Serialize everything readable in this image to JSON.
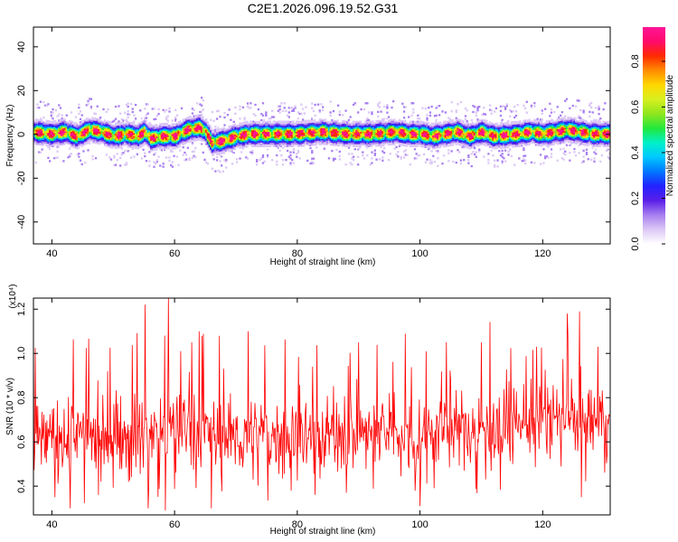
{
  "figure": {
    "title": "C2E1.2026.096.19.52.G31"
  },
  "chart_data": [
    {
      "type": "heatmap",
      "title": "C2E1.2026.096.19.52.G31",
      "xlabel": "Height of straight line (km)",
      "ylabel": "Frequency (Hz)",
      "xlim": [
        37,
        131
      ],
      "ylim": [
        -50,
        49
      ],
      "xticks": [
        40,
        60,
        80,
        100,
        120
      ],
      "yticks": [
        -40,
        -20,
        0,
        20,
        40
      ],
      "ridge": {
        "description": "frequency trace of the signal vs height",
        "x": [
          37,
          40,
          42,
          44,
          46,
          48,
          50,
          52,
          54,
          55,
          56,
          58,
          60,
          62,
          64,
          65,
          66,
          68,
          70,
          72,
          76,
          80,
          84,
          88,
          92,
          96,
          98,
          100,
          102,
          104,
          106,
          108,
          110,
          112,
          116,
          118,
          120,
          122,
          124,
          126,
          128,
          130,
          131
        ],
        "y": [
          1,
          0,
          1,
          -1,
          2,
          1,
          -1,
          0,
          -1,
          1,
          -2,
          -1,
          -1,
          2,
          3,
          1,
          -4,
          -3,
          -1,
          0,
          0,
          0,
          1,
          0,
          0,
          1,
          0,
          0,
          -1,
          0,
          1,
          -1,
          1,
          -1,
          0,
          1,
          0,
          1,
          2,
          1,
          0,
          0,
          0
        ]
      },
      "colorbar": {
        "label": "Normalized spectral amplitude",
        "range": [
          0.0,
          0.95
        ],
        "ticks": [
          "0.0",
          "0.2",
          "0.4",
          "0.6",
          "0.8"
        ],
        "colors": [
          "#ffffff",
          "#dcc8f5",
          "#a87ff0",
          "#5a1fe8",
          "#2222ff",
          "#0077ff",
          "#00c8ff",
          "#00f0c8",
          "#22e83c",
          "#8fe61e",
          "#d8ef1e",
          "#ffd700",
          "#ff8c00",
          "#ff2a00",
          "#ff0a6a",
          "#ff1496"
        ]
      }
    },
    {
      "type": "line",
      "xlabel": "Height of straight line (km)",
      "ylabel": "SNR (10 * v/v)",
      "exponent_label": "(x10⁴)",
      "color": "#ff0000",
      "xlim": [
        37,
        131
      ],
      "ylim": [
        0.27,
        1.25
      ],
      "xticks": [
        40,
        60,
        80,
        100,
        120
      ],
      "yticks": [
        "0.4",
        "0.6",
        "0.8",
        "1.0",
        "1.2"
      ],
      "sample_step_km": 0.1,
      "baseline": {
        "x": [
          37,
          45,
          55,
          60,
          65,
          70,
          80,
          90,
          100,
          110,
          120,
          125,
          131
        ],
        "y": [
          0.62,
          0.62,
          0.64,
          0.66,
          0.64,
          0.62,
          0.63,
          0.64,
          0.64,
          0.67,
          0.7,
          0.72,
          0.68
        ]
      },
      "peaks": {
        "x": [
          55.2,
          59.0,
          61.0,
          64.0,
          72.0,
          90.0,
          100.0,
          110.0,
          119.0,
          124.0,
          126.0,
          129.0
        ],
        "y": [
          1.22,
          1.25,
          1.01,
          1.1,
          1.1,
          1.05,
          1.18,
          1.05,
          1.03,
          1.18,
          1.19,
          1.03
        ]
      },
      "troughs": {
        "x": [
          40.5,
          43.0,
          48.0,
          55.7,
          58.5,
          66.0,
          79.0,
          88.0,
          100.0,
          126.3
        ],
        "y": [
          0.35,
          0.3,
          0.42,
          0.3,
          0.29,
          0.3,
          0.38,
          0.37,
          0.31,
          0.35
        ]
      }
    }
  ]
}
